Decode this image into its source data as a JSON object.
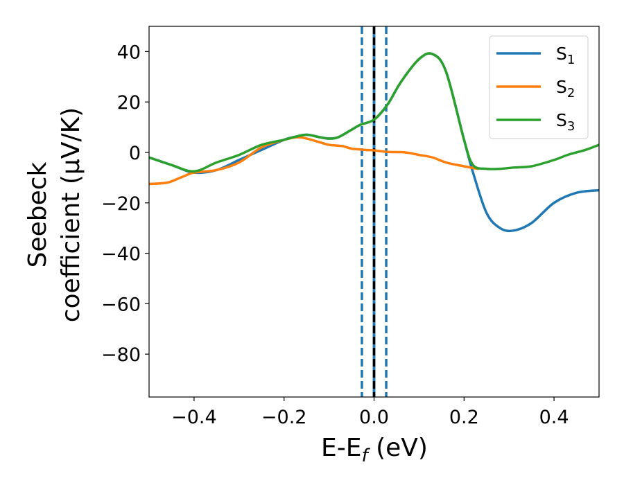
{
  "chart_data": {
    "type": "line",
    "title": "",
    "xlabel": "E-E",
    "xlabel_sub": "f",
    "xlabel_unit": " (eV)",
    "ylabel_line1": "Seebeck",
    "ylabel_line2": "coefficient  (μV/K)",
    "xlim": [
      -0.5,
      0.5
    ],
    "ylim": [
      -97,
      50
    ],
    "xticks": [
      -0.4,
      -0.2,
      0.0,
      0.2,
      0.4
    ],
    "xtick_labels": [
      "−0.4",
      "−0.2",
      "0.0",
      "0.2",
      "0.4"
    ],
    "yticks": [
      40,
      20,
      0,
      -20,
      -40,
      -60,
      -80
    ],
    "ytick_labels": [
      "40",
      "20",
      "0",
      "−20",
      "−40",
      "−60",
      "−80"
    ],
    "grid": false,
    "legend_position": "top-right",
    "series": [
      {
        "name": "S",
        "sub": "1",
        "color": "#1f77b4",
        "x": [
          -0.5,
          -0.45,
          -0.4,
          -0.35,
          -0.3,
          -0.25,
          -0.2,
          -0.18,
          -0.15,
          -0.12,
          -0.1,
          -0.08,
          -0.05,
          -0.03,
          0.0,
          0.03,
          0.06,
          0.1,
          0.13,
          0.16,
          0.2,
          0.22,
          0.25,
          0.28,
          0.31,
          0.35,
          0.4,
          0.45,
          0.5
        ],
        "y": [
          -2,
          -5,
          -8,
          -7,
          -3,
          1,
          5,
          6,
          7,
          6,
          5.5,
          6,
          9,
          11,
          13,
          19,
          28,
          37,
          39,
          32,
          5,
          -8,
          -24,
          -30,
          -31,
          -28,
          -20,
          -16,
          -15
        ]
      },
      {
        "name": "S",
        "sub": "2",
        "color": "#ff7f0e",
        "x": [
          -0.5,
          -0.46,
          -0.43,
          -0.4,
          -0.35,
          -0.3,
          -0.25,
          -0.2,
          -0.17,
          -0.15,
          -0.12,
          -0.1,
          -0.07,
          -0.05,
          -0.02,
          0.0,
          0.03,
          0.07,
          0.1,
          0.13,
          0.16,
          0.2,
          0.23
        ],
        "y": [
          -12.5,
          -12,
          -10,
          -8,
          -7,
          -4,
          2,
          5,
          6,
          5.5,
          4,
          3,
          2.5,
          1.5,
          1,
          0.8,
          0.2,
          0,
          -1,
          -2,
          -4,
          -5.5,
          -6.5
        ]
      },
      {
        "name": "S",
        "sub": "3",
        "color": "#2ca02c",
        "x": [
          -0.5,
          -0.45,
          -0.4,
          -0.35,
          -0.3,
          -0.25,
          -0.2,
          -0.18,
          -0.15,
          -0.12,
          -0.1,
          -0.08,
          -0.05,
          -0.03,
          0.0,
          0.03,
          0.06,
          0.1,
          0.13,
          0.16,
          0.2,
          0.22,
          0.25,
          0.28,
          0.31,
          0.35,
          0.4,
          0.43,
          0.47,
          0.5
        ],
        "y": [
          -2,
          -5,
          -7.5,
          -4,
          -1,
          3,
          5,
          6,
          7,
          6,
          5.5,
          6,
          9,
          11,
          13,
          19,
          28,
          37,
          39,
          32,
          5,
          -5,
          -6.5,
          -6.5,
          -6,
          -5.5,
          -3,
          -1,
          1,
          3
        ]
      }
    ],
    "vlines": [
      {
        "x": -0.027,
        "color": "#1f77b4",
        "style": "dashed"
      },
      {
        "x": 0.0,
        "color": "#000000",
        "style": "dashed"
      },
      {
        "x": 0.027,
        "color": "#1f77b4",
        "style": "dashed"
      }
    ],
    "vband": {
      "x0": -0.003,
      "x1": 0.003,
      "color": "#1f77b4"
    }
  }
}
